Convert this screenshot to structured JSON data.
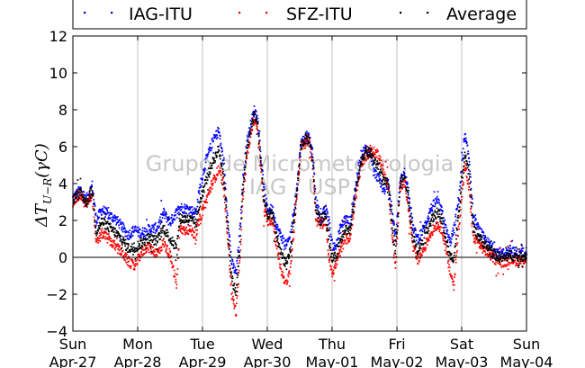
{
  "chart_data": {
    "type": "scatter",
    "ylabel": "ΔT_{U−R}(γC)",
    "ylabel_main": "ΔT",
    "ylabel_sub": "U−R",
    "ylabel_tail": "(γC)",
    "xlabel": "",
    "ylim": [
      -4,
      12
    ],
    "yticks": [
      -4,
      -2,
      0,
      2,
      4,
      6,
      8,
      10,
      12
    ],
    "xlim": [
      0,
      7
    ],
    "xticks": [
      {
        "day": "Sun",
        "date": "Apr-27"
      },
      {
        "day": "Mon",
        "date": "Apr-28"
      },
      {
        "day": "Tue",
        "date": "Apr-29"
      },
      {
        "day": "Wed",
        "date": "Apr-30"
      },
      {
        "day": "Thu",
        "date": "May-01"
      },
      {
        "day": "Fri",
        "date": "May-02"
      },
      {
        "day": "Sat",
        "date": "May-03"
      },
      {
        "day": "Sun",
        "date": "May-04"
      }
    ],
    "grid": "vertical",
    "zero_line": true,
    "legend": "top, above plot, horizontal",
    "watermark": [
      "Grupo de Micrometeorologia",
      "IAG / USP"
    ],
    "x_unit": "days since Sun Apr-27 00:00",
    "series": [
      {
        "name": "IAG-ITU",
        "color": "#0000ff",
        "knots": [
          [
            0,
            3.2
          ],
          [
            0.12,
            3.7
          ],
          [
            0.2,
            3.1
          ],
          [
            0.3,
            3.9
          ],
          [
            0.36,
            2.0
          ],
          [
            0.45,
            2.6
          ],
          [
            0.55,
            2.3
          ],
          [
            0.65,
            2.1
          ],
          [
            0.75,
            1.7
          ],
          [
            0.85,
            1.2
          ],
          [
            0.95,
            1.5
          ],
          [
            1.05,
            1.3
          ],
          [
            1.15,
            1.5
          ],
          [
            1.3,
            1.6
          ],
          [
            1.4,
            2.4
          ],
          [
            1.5,
            1.9
          ],
          [
            1.65,
            2.7
          ],
          [
            1.8,
            2.6
          ],
          [
            1.9,
            2.4
          ],
          [
            1.95,
            3.6
          ],
          [
            2.05,
            5.2
          ],
          [
            2.15,
            6.2
          ],
          [
            2.25,
            6.9
          ],
          [
            2.32,
            5.3
          ],
          [
            2.38,
            2.6
          ],
          [
            2.45,
            -0.3
          ],
          [
            2.52,
            -0.9
          ],
          [
            2.58,
            1.6
          ],
          [
            2.62,
            4.1
          ],
          [
            2.68,
            6.2
          ],
          [
            2.75,
            7.3
          ],
          [
            2.8,
            8.0
          ],
          [
            2.85,
            7.5
          ],
          [
            2.9,
            5.6
          ],
          [
            2.95,
            3.6
          ],
          [
            3.0,
            2.6
          ],
          [
            3.08,
            2.6
          ],
          [
            3.15,
            1.6
          ],
          [
            3.22,
            1.1
          ],
          [
            3.3,
            0.6
          ],
          [
            3.36,
            1.3
          ],
          [
            3.45,
            3.6
          ],
          [
            3.52,
            6.2
          ],
          [
            3.6,
            6.6
          ],
          [
            3.65,
            6.4
          ],
          [
            3.7,
            5.6
          ],
          [
            3.75,
            3.1
          ],
          [
            3.82,
            2.1
          ],
          [
            3.9,
            2.6
          ],
          [
            3.95,
            2.0
          ],
          [
            4.0,
            0.7
          ],
          [
            4.05,
            0.5
          ],
          [
            4.12,
            1.5
          ],
          [
            4.2,
            2.1
          ],
          [
            4.28,
            1.9
          ],
          [
            4.35,
            3.6
          ],
          [
            4.45,
            5.6
          ],
          [
            4.52,
            5.9
          ],
          [
            4.6,
            5.6
          ],
          [
            4.65,
            4.6
          ],
          [
            4.72,
            4.3
          ],
          [
            4.8,
            3.6
          ],
          [
            4.86,
            4.1
          ],
          [
            4.92,
            2.6
          ],
          [
            4.98,
            1.1
          ],
          [
            5.05,
            4.1
          ],
          [
            5.12,
            4.6
          ],
          [
            5.18,
            3.6
          ],
          [
            5.25,
            1.6
          ],
          [
            5.32,
            1.0
          ],
          [
            5.42,
            1.6
          ],
          [
            5.52,
            2.6
          ],
          [
            5.62,
            3.1
          ],
          [
            5.7,
            2.4
          ],
          [
            5.75,
            1.6
          ],
          [
            5.82,
            0.8
          ],
          [
            5.88,
            1.5
          ],
          [
            5.95,
            3.1
          ],
          [
            6.05,
            6.6
          ],
          [
            6.12,
            5.2
          ],
          [
            6.18,
            2.1
          ],
          [
            6.25,
            1.6
          ],
          [
            6.35,
            1.0
          ],
          [
            6.45,
            0.6
          ],
          [
            6.55,
            0.3
          ],
          [
            6.65,
            0.2
          ],
          [
            6.75,
            0.4
          ],
          [
            6.85,
            0.2
          ],
          [
            7.0,
            0.3
          ]
        ]
      },
      {
        "name": "SFZ-ITU",
        "color": "#ff0000",
        "knots": [
          [
            0,
            3.0
          ],
          [
            0.12,
            3.4
          ],
          [
            0.2,
            2.8
          ],
          [
            0.3,
            3.4
          ],
          [
            0.36,
            0.7
          ],
          [
            0.45,
            1.3
          ],
          [
            0.55,
            1.0
          ],
          [
            0.65,
            0.6
          ],
          [
            0.75,
            0.3
          ],
          [
            0.85,
            -0.2
          ],
          [
            0.95,
            -0.5
          ],
          [
            1.05,
            0.2
          ],
          [
            1.15,
            0.6
          ],
          [
            1.3,
            0.2
          ],
          [
            1.4,
            0.8
          ],
          [
            1.5,
            0.1
          ],
          [
            1.6,
            -1.5
          ],
          [
            1.65,
            1.5
          ],
          [
            1.8,
            1.5
          ],
          [
            1.9,
            1.2
          ],
          [
            1.95,
            2.0
          ],
          [
            2.05,
            3.0
          ],
          [
            2.15,
            4.0
          ],
          [
            2.25,
            4.8
          ],
          [
            2.32,
            4.0
          ],
          [
            2.38,
            1.5
          ],
          [
            2.45,
            -2.0
          ],
          [
            2.52,
            -3.0
          ],
          [
            2.58,
            0.0
          ],
          [
            2.62,
            3.0
          ],
          [
            2.68,
            5.3
          ],
          [
            2.75,
            6.8
          ],
          [
            2.8,
            7.5
          ],
          [
            2.85,
            7.0
          ],
          [
            2.9,
            4.8
          ],
          [
            2.95,
            2.5
          ],
          [
            3.0,
            2.0
          ],
          [
            3.08,
            2.0
          ],
          [
            3.15,
            0.5
          ],
          [
            3.22,
            -0.8
          ],
          [
            3.3,
            -1.5
          ],
          [
            3.36,
            -0.5
          ],
          [
            3.45,
            3.0
          ],
          [
            3.52,
            6.0
          ],
          [
            3.6,
            6.3
          ],
          [
            3.65,
            6.2
          ],
          [
            3.7,
            5.0
          ],
          [
            3.75,
            2.0
          ],
          [
            3.82,
            1.8
          ],
          [
            3.9,
            2.0
          ],
          [
            3.95,
            0.0
          ],
          [
            4.0,
            -0.8
          ],
          [
            4.05,
            -0.5
          ],
          [
            4.12,
            0.3
          ],
          [
            4.2,
            1.0
          ],
          [
            4.28,
            1.0
          ],
          [
            4.35,
            3.0
          ],
          [
            4.45,
            5.0
          ],
          [
            4.52,
            5.5
          ],
          [
            4.6,
            5.7
          ],
          [
            4.65,
            5.7
          ],
          [
            4.72,
            5.6
          ],
          [
            4.8,
            4.5
          ],
          [
            4.86,
            4.0
          ],
          [
            4.92,
            1.5
          ],
          [
            4.98,
            -0.5
          ],
          [
            5.05,
            3.8
          ],
          [
            5.12,
            4.2
          ],
          [
            5.18,
            2.5
          ],
          [
            5.25,
            0.5
          ],
          [
            5.32,
            -0.2
          ],
          [
            5.42,
            0.5
          ],
          [
            5.52,
            1.3
          ],
          [
            5.62,
            1.8
          ],
          [
            5.7,
            1.5
          ],
          [
            5.75,
            0.5
          ],
          [
            5.82,
            -0.8
          ],
          [
            5.88,
            -1.5
          ],
          [
            5.95,
            1.5
          ],
          [
            6.05,
            5.0
          ],
          [
            6.12,
            3.5
          ],
          [
            6.18,
            1.0
          ],
          [
            6.25,
            0.8
          ],
          [
            6.35,
            0.4
          ],
          [
            6.45,
            0.1
          ],
          [
            6.55,
            -0.2
          ],
          [
            6.65,
            -0.3
          ],
          [
            6.75,
            -0.1
          ],
          [
            6.85,
            -0.2
          ],
          [
            7.0,
            -0.1
          ]
        ]
      },
      {
        "name": "Average",
        "color": "#000000",
        "knots": [
          [
            0,
            3.1
          ],
          [
            0.12,
            3.55
          ],
          [
            0.2,
            2.95
          ],
          [
            0.3,
            3.65
          ],
          [
            0.36,
            1.35
          ],
          [
            0.45,
            1.95
          ],
          [
            0.55,
            1.65
          ],
          [
            0.65,
            1.35
          ],
          [
            0.75,
            1.0
          ],
          [
            0.85,
            0.5
          ],
          [
            0.95,
            0.5
          ],
          [
            1.05,
            0.75
          ],
          [
            1.15,
            1.05
          ],
          [
            1.3,
            0.9
          ],
          [
            1.4,
            1.6
          ],
          [
            1.5,
            1.0
          ],
          [
            1.6,
            0.5
          ],
          [
            1.65,
            2.1
          ],
          [
            1.8,
            2.05
          ],
          [
            1.9,
            1.8
          ],
          [
            1.95,
            2.8
          ],
          [
            2.05,
            4.1
          ],
          [
            2.15,
            5.1
          ],
          [
            2.25,
            5.85
          ],
          [
            2.32,
            4.65
          ],
          [
            2.38,
            2.05
          ],
          [
            2.45,
            -1.15
          ],
          [
            2.52,
            -1.95
          ],
          [
            2.58,
            0.8
          ],
          [
            2.62,
            3.55
          ],
          [
            2.68,
            5.75
          ],
          [
            2.75,
            7.05
          ],
          [
            2.8,
            7.75
          ],
          [
            2.85,
            7.25
          ],
          [
            2.9,
            5.2
          ],
          [
            2.95,
            3.05
          ],
          [
            3.0,
            2.3
          ],
          [
            3.08,
            2.3
          ],
          [
            3.15,
            1.05
          ],
          [
            3.22,
            0.15
          ],
          [
            3.3,
            -0.45
          ],
          [
            3.36,
            0.4
          ],
          [
            3.45,
            3.3
          ],
          [
            3.52,
            6.1
          ],
          [
            3.6,
            6.45
          ],
          [
            3.65,
            6.3
          ],
          [
            3.7,
            5.3
          ],
          [
            3.75,
            2.55
          ],
          [
            3.82,
            1.95
          ],
          [
            3.9,
            2.3
          ],
          [
            3.95,
            1.0
          ],
          [
            4.0,
            -0.05
          ],
          [
            4.05,
            0.0
          ],
          [
            4.12,
            0.9
          ],
          [
            4.2,
            1.55
          ],
          [
            4.28,
            1.45
          ],
          [
            4.35,
            3.3
          ],
          [
            4.45,
            5.3
          ],
          [
            4.52,
            5.7
          ],
          [
            4.6,
            5.65
          ],
          [
            4.65,
            5.15
          ],
          [
            4.72,
            4.95
          ],
          [
            4.8,
            4.05
          ],
          [
            4.86,
            4.05
          ],
          [
            4.92,
            2.05
          ],
          [
            4.98,
            0.3
          ],
          [
            5.05,
            3.95
          ],
          [
            5.12,
            4.4
          ],
          [
            5.18,
            3.05
          ],
          [
            5.25,
            1.05
          ],
          [
            5.32,
            0.4
          ],
          [
            5.42,
            1.05
          ],
          [
            5.52,
            1.95
          ],
          [
            5.62,
            2.45
          ],
          [
            5.7,
            1.95
          ],
          [
            5.75,
            1.05
          ],
          [
            5.82,
            0.0
          ],
          [
            5.88,
            0.0
          ],
          [
            5.95,
            2.3
          ],
          [
            6.05,
            5.8
          ],
          [
            6.12,
            4.35
          ],
          [
            6.18,
            1.55
          ],
          [
            6.25,
            1.2
          ],
          [
            6.35,
            0.7
          ],
          [
            6.45,
            0.35
          ],
          [
            6.55,
            0.05
          ],
          [
            6.65,
            -0.05
          ],
          [
            6.75,
            0.15
          ],
          [
            6.85,
            0.0
          ],
          [
            7.0,
            0.1
          ]
        ]
      }
    ]
  }
}
